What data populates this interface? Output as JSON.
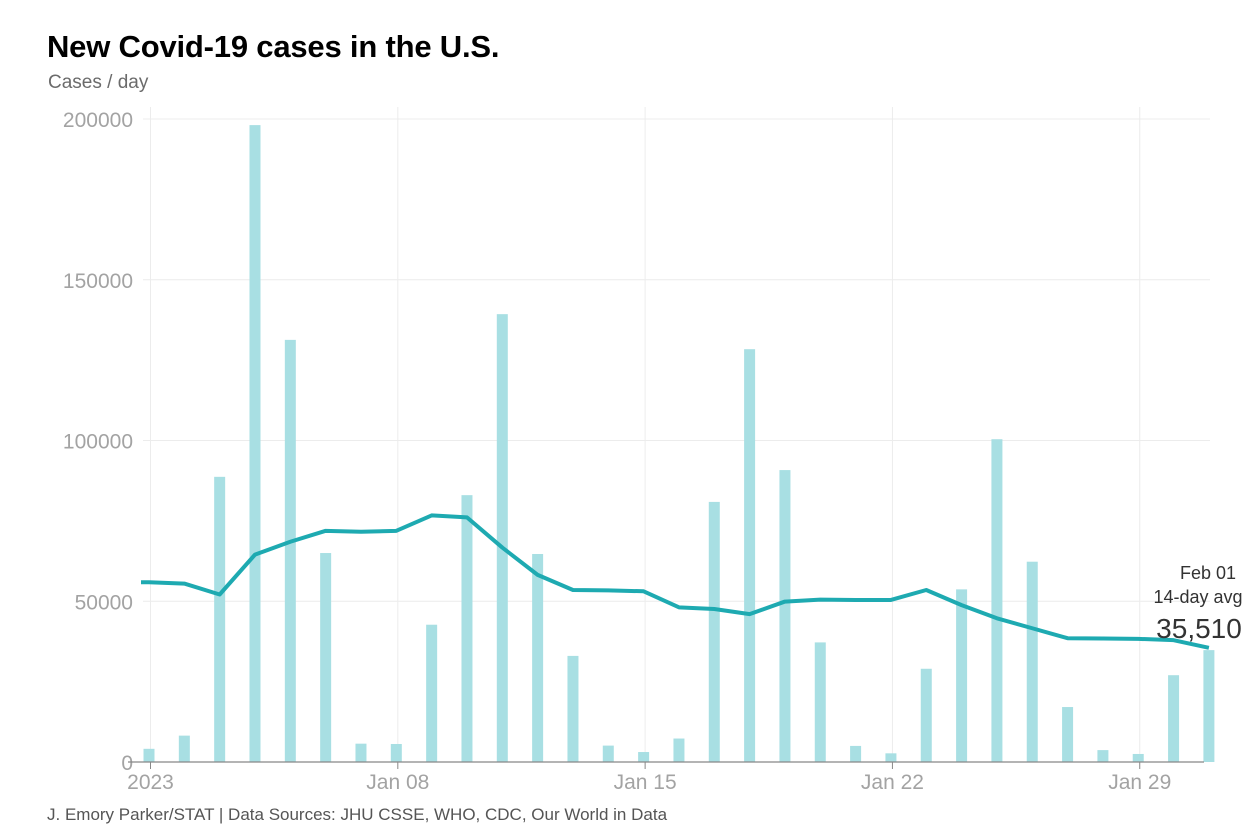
{
  "header": {
    "title": "New Covid-19 cases in the U.S.",
    "subtitle": "Cases / day"
  },
  "footer": {
    "credit": "J. Emory Parker/STAT | Data Sources: JHU CSSE, WHO, CDC, Our World in Data"
  },
  "colors": {
    "bars": "#a8dfe3",
    "line": "#1eaab1",
    "grid": "#ececec",
    "axis": "#888888"
  },
  "chart_data": {
    "type": "bar",
    "title": "New Covid-19 cases in the U.S.",
    "subtitle": "Cases / day",
    "xlabel": "",
    "ylabel": "Cases / day",
    "ylim": [
      0,
      200000
    ],
    "grid": true,
    "yticks": [
      0,
      50000,
      100000,
      150000,
      200000
    ],
    "ytick_labels": [
      "0",
      "50000",
      "100000",
      "150000",
      "200000"
    ],
    "xticks": [
      {
        "day": 1,
        "label": "2023"
      },
      {
        "day": 8,
        "label": "Jan 08"
      },
      {
        "day": 15,
        "label": "Jan 15"
      },
      {
        "day": 22,
        "label": "Jan 22"
      },
      {
        "day": 29,
        "label": "Jan 29"
      }
    ],
    "categories": [
      "Jan 01",
      "Jan 02",
      "Jan 03",
      "Jan 04",
      "Jan 05",
      "Jan 06",
      "Jan 07",
      "Jan 08",
      "Jan 09",
      "Jan 10",
      "Jan 11",
      "Jan 12",
      "Jan 13",
      "Jan 14",
      "Jan 15",
      "Jan 16",
      "Jan 17",
      "Jan 18",
      "Jan 19",
      "Jan 20",
      "Jan 21",
      "Jan 22",
      "Jan 23",
      "Jan 24",
      "Jan 25",
      "Jan 26",
      "Jan 27",
      "Jan 28",
      "Jan 29",
      "Jan 30",
      "Jan 31"
    ],
    "series": [
      {
        "name": "New cases",
        "type": "bar",
        "values": [
          4100,
          8200,
          88700,
          198100,
          131300,
          65000,
          5700,
          5600,
          42700,
          83000,
          139300,
          64700,
          33000,
          5100,
          3100,
          7300,
          80900,
          128400,
          90800,
          37200,
          5000,
          2700,
          29000,
          53700,
          100400,
          62300,
          17100,
          3700,
          2500,
          27000,
          34800
        ]
      },
      {
        "name": "14-day avg",
        "type": "line",
        "values": [
          55900,
          55500,
          52100,
          64500,
          68500,
          71900,
          71600,
          71900,
          76700,
          76100,
          66700,
          58200,
          53500,
          53400,
          53100,
          48100,
          47600,
          46000,
          49900,
          50500,
          50400,
          50400,
          53500,
          48800,
          44700,
          41600,
          38500,
          38400,
          38300,
          37900,
          35510
        ]
      }
    ],
    "annotation": {
      "date": "Feb 01",
      "label": "14-day avg",
      "value": "35,510"
    }
  }
}
